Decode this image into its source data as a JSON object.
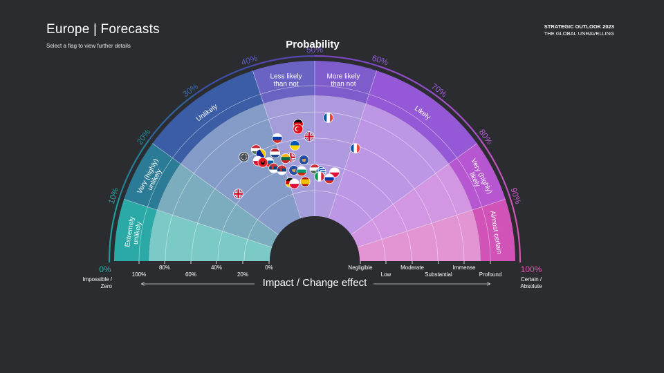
{
  "header": {
    "title": "Europe | Forecasts",
    "subtitle": "Select a flag to view further details",
    "brand_line1": "STRATEGIC OUTLOOK 2023",
    "brand_line2": "THE GLOBAL UNRAVELLING"
  },
  "probability": {
    "title": "Probability",
    "ticks": [
      "10%",
      "20%",
      "30%",
      "40%",
      "50%",
      "60%",
      "70%",
      "80%",
      "90%"
    ],
    "end_left_pct": "0%",
    "end_left_label_1": "Impossible /",
    "end_left_label_2": "Zero",
    "end_right_pct": "100%",
    "end_right_label_1": "Certain /",
    "end_right_label_2": "Absolute",
    "sectors": [
      {
        "label": [
          "Extremely",
          "unlikely"
        ],
        "color": "#2aa9a6"
      },
      {
        "label": [
          "Very (highly)",
          "unlikely"
        ],
        "color": "#2b7b96"
      },
      {
        "label": [
          "Unlikely"
        ],
        "color": "#3a5da6"
      },
      {
        "label": [
          "Less likely",
          "than not"
        ],
        "color": "#6a63c4"
      },
      {
        "label": [
          "More likely",
          "than not"
        ],
        "color": "#7f5ccc"
      },
      {
        "label": [
          "Likely"
        ],
        "color": "#9558d6"
      },
      {
        "label": [
          "Very (highly)",
          "likely"
        ],
        "color": "#b656d1"
      },
      {
        "label": [
          "Almost certain"
        ],
        "color": "#d153b8"
      }
    ]
  },
  "impact": {
    "title": "Impact / Change effect",
    "left_ticks": [
      "100%",
      "80%",
      "60%",
      "40%",
      "20%",
      "0%"
    ],
    "right_ticks": [
      "Negligible",
      "Low",
      "Moderate",
      "Substantial",
      "Immense",
      "Profound"
    ]
  },
  "flags": [
    {
      "country": "Germany",
      "icon": "flag-germany",
      "p": 46.2,
      "r": 0.77
    },
    {
      "country": "Turkey",
      "icon": "flag-turkey",
      "p": 46.0,
      "r": 0.73
    },
    {
      "country": "United Kingdom",
      "icon": "flag-united-kingdom",
      "p": 48.6,
      "r": 0.66
    },
    {
      "country": "France",
      "icon": "flag-france",
      "p": 53.0,
      "r": 0.82
    },
    {
      "country": "Russia",
      "icon": "flag-russia",
      "p": 40.6,
      "r": 0.69
    },
    {
      "country": "Ukraine",
      "icon": "flag-ukraine",
      "p": 44.6,
      "r": 0.6
    },
    {
      "country": "France",
      "icon": "flag-france",
      "p": 61.0,
      "r": 0.62
    },
    {
      "country": "Hungary",
      "icon": "flag-hungary",
      "p": 34.6,
      "r": 0.67
    },
    {
      "country": "Bosnia and Herzegovina",
      "icon": "flag-bosnia",
      "p": 35.2,
      "r": 0.62
    },
    {
      "country": "Netherlands",
      "icon": "flag-netherlands",
      "p": 38.8,
      "r": 0.58
    },
    {
      "country": "United Kingdom",
      "icon": "flag-united-kingdom",
      "p": 42.8,
      "r": 0.51
    },
    {
      "country": "Kosovo",
      "icon": "flag-kosovo",
      "p": 46.6,
      "r": 0.47
    },
    {
      "country": "Lithuania",
      "icon": "flag-lithuania",
      "p": 41.2,
      "r": 0.51
    },
    {
      "country": "EU",
      "icon": "flag-eu",
      "p": 31.0,
      "r": 0.67
    },
    {
      "country": "Slovenia",
      "icon": "flag-slovenia",
      "p": 36.2,
      "r": 0.53
    },
    {
      "country": "Serbia",
      "icon": "flag-serbia",
      "p": 36.8,
      "r": 0.47
    },
    {
      "country": "Kosovo",
      "icon": "flag-kosovo",
      "p": 42.8,
      "r": 0.4
    },
    {
      "country": "Bulgaria",
      "icon": "flag-bulgaria",
      "p": 45.4,
      "r": 0.38
    },
    {
      "country": "Hungary",
      "icon": "flag-hungary",
      "p": 50.0,
      "r": 0.39
    },
    {
      "country": "Greece",
      "icon": "flag-greece",
      "p": 52.2,
      "r": 0.37
    },
    {
      "country": "Poland",
      "icon": "flag-poland",
      "p": 57.0,
      "r": 0.38
    },
    {
      "country": "Italy",
      "icon": "flag-italy",
      "p": 51.8,
      "r": 0.33
    },
    {
      "country": "Russia",
      "icon": "flag-russia",
      "p": 55.6,
      "r": 0.32
    },
    {
      "country": "Poland",
      "icon": "flag-poland",
      "p": 33.6,
      "r": 0.58
    },
    {
      "country": "Albania",
      "icon": "flag-albania",
      "p": 34.6,
      "r": 0.55
    },
    {
      "country": "Serbia",
      "icon": "flag-serbia",
      "p": 39.0,
      "r": 0.43
    },
    {
      "country": "Germany",
      "icon": "flag-germany",
      "p": 40.4,
      "r": 0.31
    },
    {
      "country": "Poland",
      "icon": "flag-poland",
      "p": 41.8,
      "r": 0.29
    },
    {
      "country": "Spain",
      "icon": "flag-spain",
      "p": 46.2,
      "r": 0.29
    },
    {
      "country": "United Kingdom",
      "icon": "flag-united-kingdom",
      "p": 23.0,
      "r": 0.47
    }
  ]
}
